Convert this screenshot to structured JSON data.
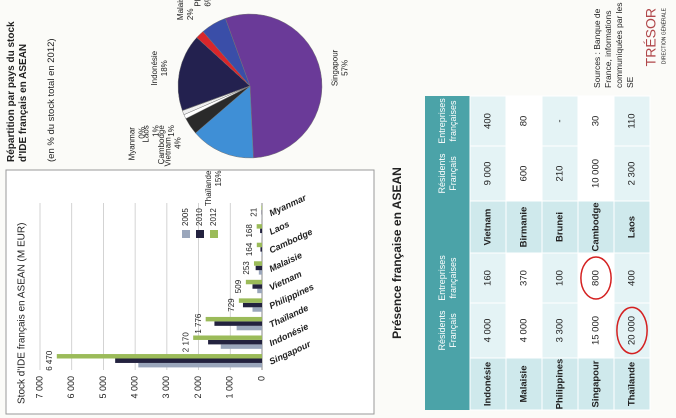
{
  "chart_data": [
    {
      "type": "bar",
      "title": "Stock d'IDE français en ASEAN (M EUR)",
      "categories": [
        "Singapour",
        "Indonésie",
        "Thaïlande",
        "Philippines",
        "Vietnam",
        "Malaisie",
        "Cambodge",
        "Laos",
        "Myanmar"
      ],
      "series": [
        {
          "name": "2005",
          "color": "#9aa6bb",
          "values": [
            3900,
            1300,
            800,
            300,
            150,
            100,
            20,
            10,
            5
          ]
        },
        {
          "name": "2010",
          "color": "#23223f",
          "values": [
            4630,
            1700,
            1500,
            600,
            300,
            200,
            50,
            60,
            10
          ]
        },
        {
          "name": "2012",
          "color": "#9bbb59",
          "values": [
            6470,
            2170,
            1776,
            729,
            509,
            253,
            164,
            168,
            21
          ],
          "value_labels": [
            "6 470",
            "2 170",
            "1 776",
            "729",
            "509",
            "253",
            "164",
            "168",
            "21"
          ]
        }
      ],
      "ylim": [
        0,
        7000
      ],
      "yticks": [
        0,
        {
          "value": 1000,
          "label": "1 000"
        },
        {
          "value": 2000,
          "label": "2 000"
        },
        {
          "value": 3000,
          "label": "3 000"
        },
        {
          "value": 4000,
          "label": "4 000"
        },
        {
          "value": 5000,
          "label": "5 000"
        },
        {
          "value": 6000,
          "label": "6 000"
        },
        {
          "value": 7000,
          "label": "7 000"
        }
      ],
      "grid": true,
      "legend": "right"
    },
    {
      "type": "pie",
      "title": "Répartition par pays du stock d'IDE français en ASEAN",
      "subtitle": "(en % du stock total en 2012)",
      "categories": [
        "Indonésie",
        "Malaisie",
        "Philippines",
        "Singapour",
        "Thaïlande",
        "Vietnam",
        "Cambodge",
        "Laos",
        "Myanmar"
      ],
      "values": [
        18,
        2,
        6,
        57,
        15,
        4,
        1,
        1,
        0
      ],
      "value_labels": [
        "18%",
        "2%",
        "6%",
        "57%",
        "15%",
        "4%",
        "1%",
        "1%",
        "0%"
      ],
      "colors": [
        "#23214f",
        "#d8262b",
        "#3a4ea8",
        "#6a3a98",
        "#3f8fd6",
        "#2a2a2a",
        "#ffffff",
        "#f0f0f0",
        "#bbbbbb"
      ]
    }
  ],
  "table": {
    "title": "Présence française en ASEAN",
    "header": [
      "Résidents Français",
      "Entreprises françaises",
      "Résidents Français",
      "Entreprises françaises"
    ],
    "rows": [
      [
        "Indonésie",
        "4 000",
        "160",
        "Vietnam",
        "9 000",
        "400"
      ],
      [
        "Malaisie",
        "4 000",
        "370",
        "Birmanie",
        "600",
        "80"
      ],
      [
        "Philippines",
        "3 300",
        "100",
        "Brunei",
        "210",
        "-"
      ],
      [
        "Singapour",
        "15 000",
        "800",
        "Cambodge",
        "10 000",
        "30"
      ],
      [
        "Thaïlande",
        "20 000",
        "400",
        "Laos",
        "2 300",
        "110"
      ]
    ]
  },
  "sources": "Sources : Banque de France, informations communiquées par les SE",
  "logo": {
    "name": "TRÉSOR",
    "subtitle": "DIRECTION GÉNÉRALE"
  }
}
